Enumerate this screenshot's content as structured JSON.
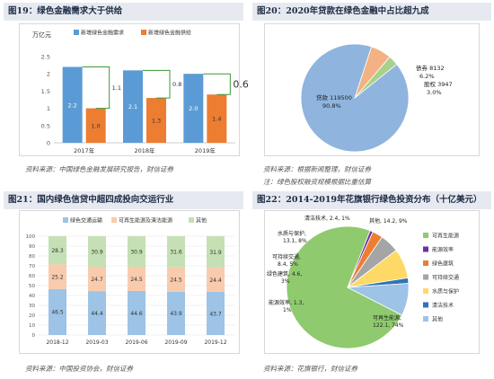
{
  "panels": {
    "p19": {
      "title": "图19：绿色金融需求大于供给",
      "source": "资料来源：中国绿色金融发展研究报告，财信证券"
    },
    "p20": {
      "title": "图20：2020年贷款在绿色金融中占比超九成",
      "source": "资料来源：根据新闻整理，财信证券",
      "note": "注：绿色股权融资规模根据比重估算"
    },
    "p21": {
      "title": "图21：国内绿色信贷中超四成投向交运行业",
      "source": "资料来源：中国投资协会，财信证券"
    },
    "p22": {
      "title": "图22：2014-2019年花旗银行绿色投资分布（十亿美元）",
      "source": "资料来源：花旗银行，财信证券"
    }
  },
  "chart_data": [
    {
      "id": "p19",
      "type": "bar",
      "ylabel": "万亿元",
      "ylim": [
        0,
        2.5
      ],
      "yticks": [
        "0",
        "0.5",
        "1",
        "1.5",
        "2",
        "2.5"
      ],
      "categories": [
        "2017年",
        "2018年",
        "2019年"
      ],
      "series": [
        {
          "name": "新增绿色金融需求",
          "color": "#5b9bd5",
          "values": [
            2.2,
            2.1,
            2.0
          ],
          "labels": [
            "2.2",
            "2.1",
            "2.0"
          ]
        },
        {
          "name": "新增绿色金融供给",
          "color": "#ed7d31",
          "values": [
            1.0,
            1.3,
            1.4
          ],
          "labels": [
            "1.0",
            "1.3",
            "1.4"
          ]
        }
      ],
      "gaps": [
        "1.1",
        "0.8",
        "0.6"
      ],
      "legend": "top",
      "grid": false
    },
    {
      "id": "p20",
      "type": "pie",
      "slices": [
        {
          "label": "贷款 119500",
          "pct": "90.8%",
          "value": 90.8,
          "color": "#8fb4de"
        },
        {
          "label": "债券 8132",
          "pct": "6.2%",
          "value": 6.2,
          "color": "#f4b183"
        },
        {
          "label": "股权 3947",
          "pct": "3.0%",
          "value": 3.0,
          "color": "#a9d18e"
        }
      ]
    },
    {
      "id": "p21",
      "type": "bar",
      "stacked": true,
      "ylim": [
        0,
        100
      ],
      "yticks": [
        "0",
        "10",
        "20",
        "30",
        "40",
        "50",
        "60",
        "70",
        "80",
        "90",
        "100"
      ],
      "categories": [
        "2018-12",
        "2019-03",
        "2019-06",
        "2019-09",
        "2019-12"
      ],
      "series": [
        {
          "name": "绿色交通运输",
          "color": "#9dc3e6",
          "values": [
            46.5,
            44.4,
            44.6,
            43.9,
            43.7
          ],
          "labels": [
            "46.5",
            "44.4",
            "44.6",
            "43.9",
            "43.7"
          ]
        },
        {
          "name": "可再生能源及清洁能源",
          "color": "#f8cbad",
          "values": [
            25.2,
            24.7,
            24.5,
            24.5,
            24.4
          ],
          "labels": [
            "25.2",
            "24.7",
            "24.5",
            "24.5",
            "24.4"
          ]
        },
        {
          "name": "其他",
          "color": "#c5e0b4",
          "values": [
            28.3,
            30.9,
            30.9,
            31.6,
            31.9
          ],
          "labels": [
            "28.3",
            "30.9",
            "30.9",
            "31.6",
            "31.9"
          ]
        }
      ],
      "legend": "top",
      "grid": true
    },
    {
      "id": "p22",
      "type": "pie",
      "slices": [
        {
          "name": "可再生能源",
          "value": 122.1,
          "pct": "74%",
          "color": "#8fca6e"
        },
        {
          "name": "能源效率",
          "value": 1.3,
          "pct": "1%",
          "color": "#7030a0"
        },
        {
          "name": "绿色建筑",
          "value": 4.6,
          "pct": "3%",
          "color": "#ed7d31"
        },
        {
          "name": "可持续交通",
          "value": 8.4,
          "pct": "5%",
          "color": "#a5a5a5"
        },
        {
          "name": "水质与保护",
          "value": 13.1,
          "pct": "8%",
          "color": "#ffd966"
        },
        {
          "name": "清洁技术",
          "value": 2.4,
          "pct": "1%",
          "color": "#2e75b6"
        },
        {
          "name": "其他",
          "value": 14.2,
          "pct": "9%",
          "color": "#9dc3e6"
        }
      ],
      "labels": {
        "renewable": [
          "可再生能源,",
          "122.1, 74%"
        ],
        "efficiency": "能源效率, 1.3,",
        "efficiency_pct": "1%",
        "building": "绿色建筑, 4.6,",
        "building_pct": "3%",
        "transport": "可持续交通,",
        "transport_pct": "8.4, 5%",
        "water": "水质与保护,",
        "water_pct": "13.1, 8%",
        "cleantech": "清洁技术, 2.4, 1%",
        "other": "其他, 14.2, 9%"
      },
      "legend": "right"
    }
  ]
}
